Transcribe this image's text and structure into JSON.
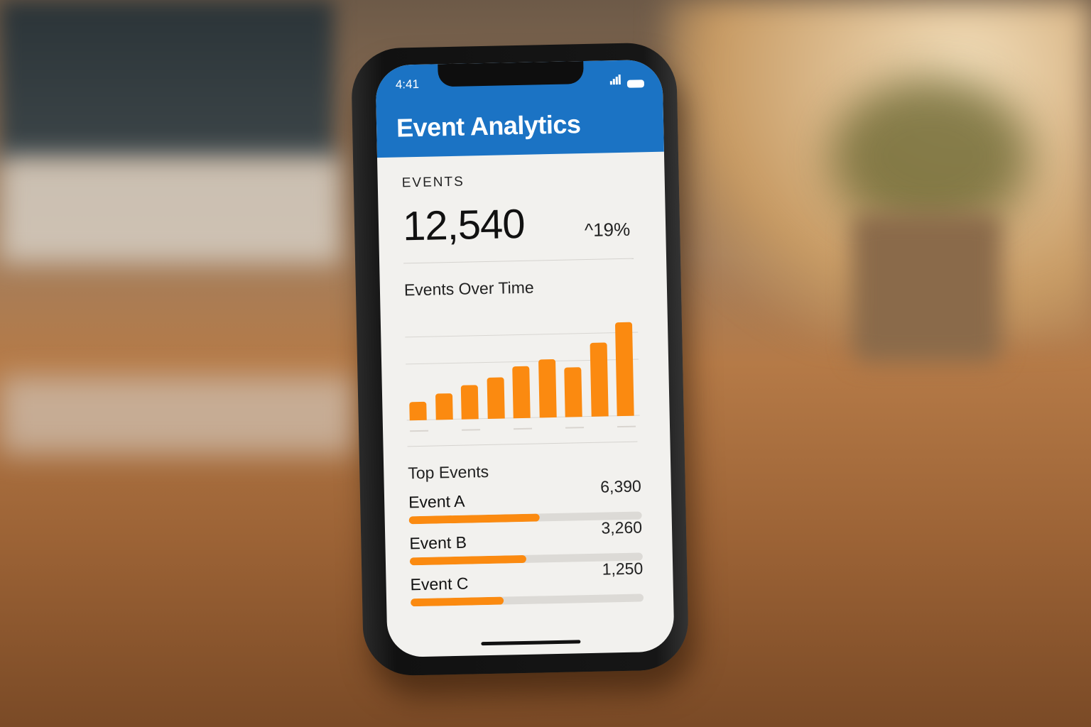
{
  "status_bar": {
    "time": "4:41"
  },
  "header": {
    "title": "Event Analytics",
    "color": "#1b73c4"
  },
  "summary": {
    "label": "EVENTS",
    "value": "12,540",
    "change": "19%",
    "change_icon": "caret-up-icon"
  },
  "chart_section": {
    "title": "Events Over Time",
    "chart_data": {
      "type": "bar",
      "values": [
        20,
        28,
        36,
        44,
        55,
        62,
        53,
        79,
        100
      ],
      "color": "#fb8a10",
      "grid": true
    }
  },
  "top_events": {
    "title": "Top Events",
    "items": [
      {
        "name": "Event A",
        "value": "6,390",
        "fill": 0.56
      },
      {
        "name": "Event B",
        "value": "3,260",
        "fill": 0.5
      },
      {
        "name": "Event C",
        "value": "1,250",
        "fill": 0.4
      }
    ]
  }
}
